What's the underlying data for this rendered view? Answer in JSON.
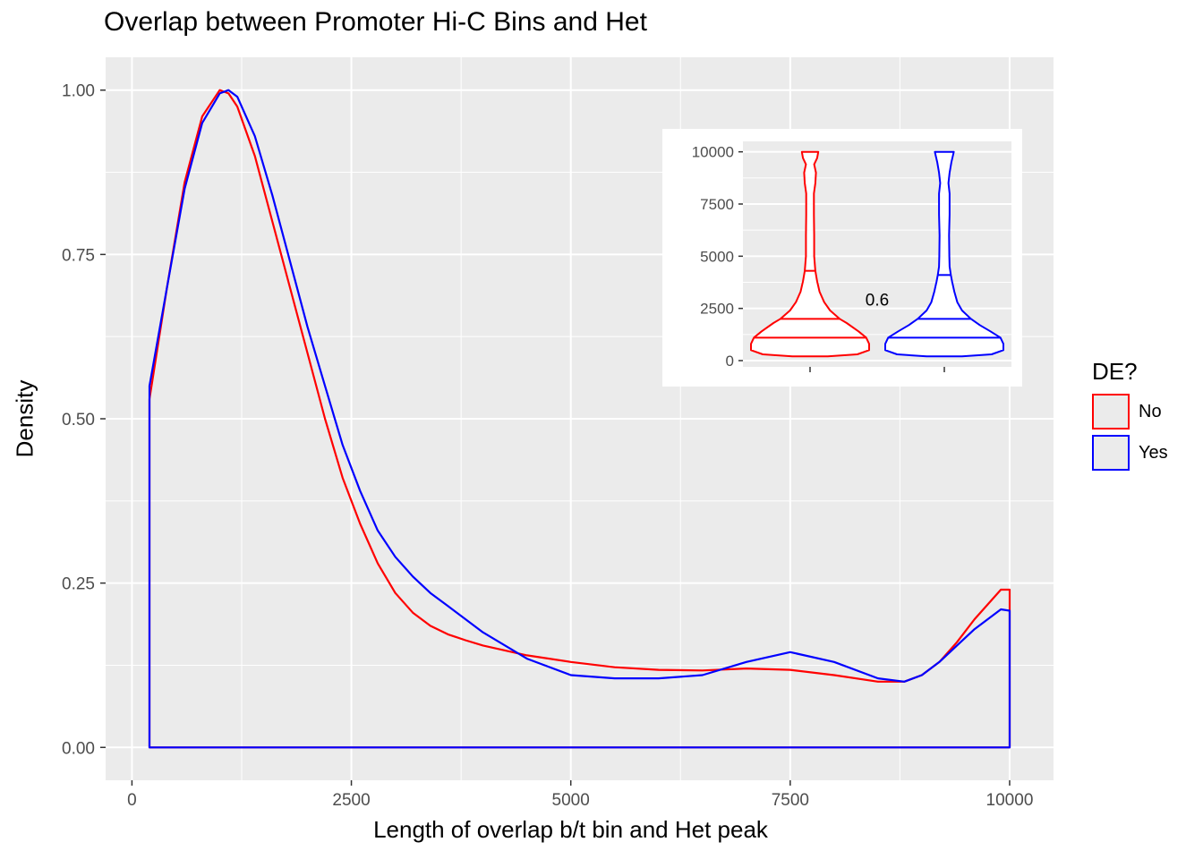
{
  "chart_data": {
    "type": "line",
    "title": "Overlap between Promoter Hi-C Bins and Het",
    "xlabel": "Length of overlap b/t bin and Het peak",
    "ylabel": "Density",
    "xlim": [
      -300,
      10500
    ],
    "ylim": [
      -0.05,
      1.05
    ],
    "x_ticks": [
      0,
      2500,
      5000,
      7500,
      10000
    ],
    "x_tick_labels": [
      "0",
      "2500",
      "5000",
      "7500",
      "10000"
    ],
    "y_ticks": [
      0,
      0.25,
      0.5,
      0.75,
      1.0
    ],
    "y_tick_labels": [
      "0.00",
      "0.25",
      "0.50",
      "0.75",
      "1.00"
    ],
    "grid": true,
    "legend": {
      "title": "DE?",
      "position": "right",
      "entries": [
        {
          "label": "No",
          "color": "#ff0000"
        },
        {
          "label": "Yes",
          "color": "#0000ff"
        }
      ]
    },
    "series": [
      {
        "name": "No",
        "color": "#ff0000",
        "x": [
          200,
          200,
          400,
          600,
          800,
          1000,
          1100,
          1200,
          1400,
          1600,
          1800,
          2000,
          2200,
          2400,
          2600,
          2800,
          3000,
          3200,
          3400,
          3600,
          3800,
          4000,
          4500,
          5000,
          5500,
          6000,
          6500,
          7000,
          7500,
          8000,
          8500,
          8800,
          9000,
          9200,
          9400,
          9600,
          9800,
          9900,
          10000,
          10000
        ],
        "y": [
          0.0,
          0.53,
          0.7,
          0.86,
          0.96,
          1.0,
          0.995,
          0.975,
          0.9,
          0.8,
          0.7,
          0.6,
          0.5,
          0.41,
          0.34,
          0.28,
          0.235,
          0.205,
          0.185,
          0.172,
          0.163,
          0.155,
          0.14,
          0.13,
          0.122,
          0.118,
          0.117,
          0.12,
          0.118,
          0.11,
          0.1,
          0.1,
          0.11,
          0.13,
          0.16,
          0.195,
          0.225,
          0.24,
          0.24,
          0.0
        ]
      },
      {
        "name": "Yes",
        "color": "#0000ff",
        "x": [
          200,
          200,
          400,
          600,
          800,
          1000,
          1100,
          1200,
          1400,
          1600,
          1800,
          2000,
          2200,
          2400,
          2600,
          2800,
          3000,
          3200,
          3400,
          3600,
          3800,
          4000,
          4500,
          5000,
          5500,
          6000,
          6500,
          7000,
          7500,
          8000,
          8500,
          8800,
          9000,
          9200,
          9400,
          9600,
          9800,
          9900,
          10000,
          10000
        ],
        "y": [
          0.0,
          0.55,
          0.7,
          0.85,
          0.95,
          0.995,
          1.0,
          0.99,
          0.93,
          0.84,
          0.74,
          0.64,
          0.55,
          0.46,
          0.39,
          0.33,
          0.29,
          0.26,
          0.235,
          0.215,
          0.195,
          0.175,
          0.135,
          0.11,
          0.105,
          0.105,
          0.11,
          0.13,
          0.145,
          0.13,
          0.105,
          0.1,
          0.11,
          0.13,
          0.155,
          0.18,
          0.2,
          0.21,
          0.208,
          0.0
        ]
      }
    ],
    "inset": {
      "type": "violin",
      "ylim": [
        -300,
        10500
      ],
      "y_ticks": [
        0,
        2500,
        5000,
        7500,
        10000
      ],
      "y_tick_labels": [
        "0",
        "2500",
        "5000",
        "7500",
        "10000"
      ],
      "annotation": "0.6",
      "annotation_y": 2900,
      "violins": [
        {
          "name": "No",
          "color": "#ff0000",
          "quantiles": [
            1100,
            2000,
            4300
          ],
          "profile_y": [
            200,
            300,
            500,
            800,
            1100,
            1400,
            1800,
            2000,
            2400,
            2800,
            3300,
            3800,
            4300,
            5000,
            6000,
            7000,
            8000,
            8500,
            9000,
            9400,
            9700,
            10000
          ],
          "profile_w": [
            0.3,
            0.8,
            1.0,
            1.0,
            0.95,
            0.82,
            0.62,
            0.5,
            0.34,
            0.24,
            0.16,
            0.12,
            0.09,
            0.07,
            0.07,
            0.065,
            0.065,
            0.09,
            0.1,
            0.07,
            0.12,
            0.14
          ]
        },
        {
          "name": "Yes",
          "color": "#0000ff",
          "quantiles": [
            1100,
            2000,
            4100
          ],
          "profile_y": [
            200,
            300,
            500,
            800,
            1100,
            1400,
            1700,
            2000,
            2400,
            2800,
            3300,
            3800,
            4100,
            4500,
            5000,
            6000,
            7000,
            8000,
            8500,
            9000,
            9500,
            10000
          ],
          "profile_w": [
            0.3,
            0.8,
            1.0,
            1.0,
            0.95,
            0.78,
            0.6,
            0.45,
            0.3,
            0.22,
            0.17,
            0.13,
            0.11,
            0.09,
            0.085,
            0.08,
            0.09,
            0.09,
            0.07,
            0.09,
            0.12,
            0.16
          ]
        }
      ]
    }
  }
}
